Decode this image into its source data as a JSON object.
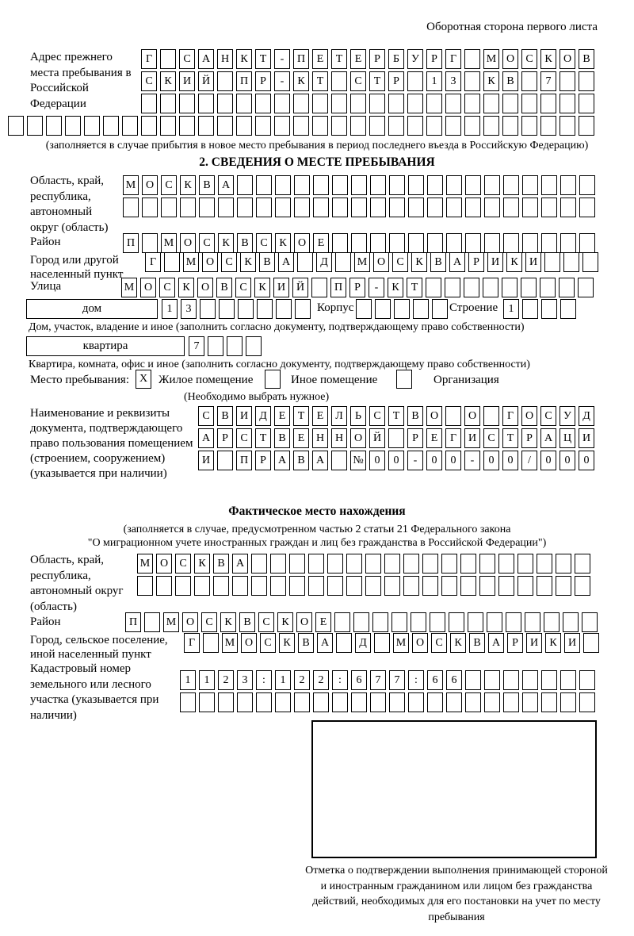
{
  "header": {
    "page_note": "Оборотная сторона первого листа"
  },
  "prev_address": {
    "label": "Адрес прежнего места пребывания в Российской Федерации",
    "row1": {
      "chars": "Г САНКТ-ПЕТЕРБУРГ МОСКОВ",
      "length": 24
    },
    "row2": {
      "chars": "СКИЙ ПР-КТ СТР 13 КВ 7",
      "length": 24
    },
    "row3": {
      "chars": "",
      "length": 24
    },
    "row4": {
      "chars": "",
      "length": 31
    },
    "note": "(заполняется в случае прибытия в новое место пребывания в период последнего въезда в Российскую Федерацию)"
  },
  "section2": {
    "title": "2. СВЕДЕНИЯ О МЕСТЕ ПРЕБЫВАНИЯ",
    "region": {
      "label": "Область, край, республика, автономный округ (область)",
      "row1": {
        "chars": "МОСКВА",
        "length": 25
      },
      "row2": {
        "chars": "",
        "length": 25
      }
    },
    "district": {
      "label": "Район",
      "row": {
        "chars": "П МОСКВСКОЕ",
        "length": 25
      }
    },
    "city": {
      "label": "Город или другой населенный пункт",
      "row": {
        "chars": "Г МОСКВА Д МОСКВАРИКИ",
        "length": 24
      }
    },
    "street": {
      "label": "Улица",
      "row": {
        "chars": "МОСКОВСКИЙ ПР-КТ",
        "length": 25
      }
    },
    "house": {
      "box_label": "дом",
      "cells": {
        "chars": "13",
        "length": 8
      },
      "korpus_label": "Корпус",
      "korpus_cells": {
        "chars": "",
        "length": 5
      },
      "stroenie_label": "Строение",
      "stroenie_cells": {
        "chars": "1",
        "length": 4
      },
      "note": "Дом, участок, владение и иное (заполнить согласно документу, подтверждающему право собственности)"
    },
    "apartment": {
      "box_label": "квартира",
      "cells": {
        "chars": "7",
        "length": 4
      },
      "note": "Квартира, комната, офис и иное (заполнить согласно документу, подтверждающему право собственности)"
    },
    "stay_type": {
      "label": "Место пребывания:",
      "options": [
        {
          "label": "Жилое помещение",
          "mark": "X"
        },
        {
          "label": "Иное помещение",
          "mark": ""
        },
        {
          "label": "Организация",
          "mark": ""
        }
      ],
      "note": "(Необходимо выбрать нужное)"
    },
    "document": {
      "label": "Наименование и реквизиты документа, подтверждающего право пользования помещением (строением, сооружением) (указывается при наличии)",
      "row1": {
        "chars": "СВИДЕТЕЛЬСТВО О ГОСУД",
        "length": 21
      },
      "row2": {
        "chars": "АРСТВЕННОЙ РЕГИСТРАЦИ",
        "length": 21
      },
      "row3": {
        "chars": "И ПРАВА №00-00-00/000",
        "length": 21
      }
    }
  },
  "actual_location": {
    "title": "Фактическое место нахождения",
    "note1": "(заполняется в случае, предусмотренном частью 2 статьи 21 Федерального закона",
    "note2": "\"О миграционном учете иностранных граждан и лиц без гражданства в Российской Федерации\")",
    "region": {
      "label": "Область, край, республика, автономный округ (область)",
      "row1": {
        "chars": "МОСКВА",
        "length": 24
      },
      "row2": {
        "chars": "",
        "length": 24
      }
    },
    "district": {
      "label": "Район",
      "row": {
        "chars": "П МОСКВСКОЕ",
        "length": 25
      }
    },
    "city": {
      "label": "Город, сельское поселение, иной населенный пункт",
      "row": {
        "chars": "Г МОСКВА Д МОСКВАРИКИ",
        "length": 22
      }
    },
    "cadastral": {
      "label": "Кадастровый номер земельного или лесного участка (указывается при наличии)",
      "row1": {
        "chars": "1123:122:677:66",
        "length": 22
      },
      "row2": {
        "chars": "",
        "length": 22
      }
    },
    "stamp_note": "Отметка о подтверждении выполнения принимающей стороной и иностранным гражданином или лицом без гражданства действий, необходимых для его постановки на учет по месту пребывания"
  }
}
